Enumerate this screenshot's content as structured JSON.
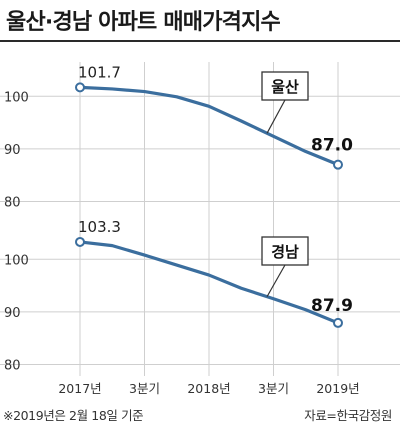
{
  "title": "울산·경남 아파트 매매가격지수",
  "footnote": "※2019년은 2월 18일 기준",
  "source": "자료=한국감정원",
  "colors": {
    "line": "#3b6e9e",
    "marker_fill": "#ffffff",
    "grid": "#cfcfcf",
    "label_box": "#333333"
  },
  "chart_data": [
    {
      "type": "line",
      "series": [
        {
          "name": "울산",
          "values": [
            101.7,
            101.4,
            100.9,
            99.9,
            98.1,
            95.3,
            92.4,
            89.5,
            87.0
          ]
        }
      ],
      "x_positions": [
        0,
        0.5,
        1,
        1.5,
        2,
        2.5,
        3,
        3.5,
        4
      ],
      "ylim": [
        78,
        105
      ],
      "yticks": [
        "100",
        "90",
        "80"
      ],
      "ytick_values": [
        100,
        90,
        80
      ],
      "start_label": "101.7",
      "end_label": "87.0"
    },
    {
      "type": "line",
      "series": [
        {
          "name": "경남",
          "values": [
            103.3,
            102.6,
            100.8,
            98.9,
            97.0,
            94.5,
            92.5,
            90.4,
            87.9
          ]
        }
      ],
      "x_positions": [
        0,
        0.5,
        1,
        1.5,
        2,
        2.5,
        3,
        3.5,
        4
      ],
      "ylim": [
        78,
        105
      ],
      "yticks": [
        "100",
        "90",
        "80"
      ],
      "ytick_values": [
        100,
        90,
        80
      ],
      "start_label": "103.3",
      "end_label": "87.9"
    }
  ],
  "x_axis": {
    "categories": [
      "2017년",
      "3분기",
      "2018년",
      "3분기",
      "2019년"
    ],
    "category_positions": [
      0,
      1,
      2,
      3,
      4
    ]
  }
}
